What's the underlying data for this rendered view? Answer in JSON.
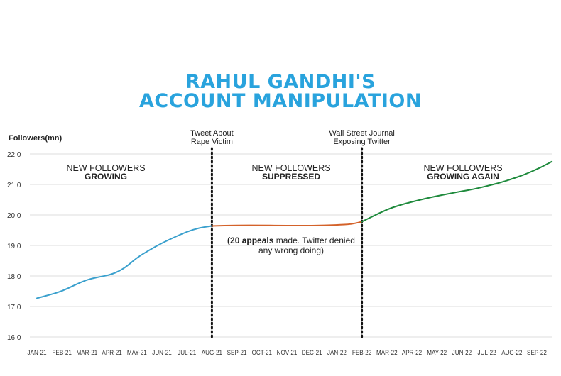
{
  "title_line1": "RAHUL GANDHI'S",
  "title_line2": "ACCOUNT MANIPULATION",
  "chart_data": {
    "type": "line",
    "ylabel": "Followers(mn)",
    "xlabel": "",
    "ylim": [
      16.0,
      22.0
    ],
    "yticks": [
      "16.0",
      "17.0",
      "18.0",
      "19.0",
      "20.0",
      "21.0",
      "22.0"
    ],
    "categories": [
      "JAN-21",
      "FEB-21",
      "MAR-21",
      "APR-21",
      "MAY-21",
      "JUN-21",
      "JUL-21",
      "AUG-21",
      "SEP-21",
      "OCT-21",
      "NOV-21",
      "DEC-21",
      "JAN-22",
      "FEB-22",
      "MAR-22",
      "APR-22",
      "MAY-22",
      "JUN-22",
      "JUL-22",
      "AUG-22",
      "SEP-22"
    ],
    "series": [
      {
        "color": "#3aa0cd",
        "points": [
          [
            0,
            17.27
          ],
          [
            0.5,
            17.38
          ],
          [
            1,
            17.5
          ],
          [
            1.5,
            17.7
          ],
          [
            2,
            17.88
          ],
          [
            2.5,
            17.97
          ],
          [
            3,
            18.05
          ],
          [
            3.5,
            18.25
          ],
          [
            4,
            18.6
          ],
          [
            4.5,
            18.85
          ],
          [
            5,
            19.08
          ],
          [
            5.5,
            19.27
          ],
          [
            6,
            19.45
          ],
          [
            6.5,
            19.58
          ],
          [
            7,
            19.64
          ]
        ]
      },
      {
        "color": "#d4622a",
        "points": [
          [
            7,
            19.64
          ],
          [
            8,
            19.66
          ],
          [
            9,
            19.66
          ],
          [
            10,
            19.65
          ],
          [
            11,
            19.65
          ],
          [
            12,
            19.67
          ],
          [
            12.6,
            19.7
          ],
          [
            13,
            19.78
          ]
        ]
      },
      {
        "color": "#1e8a3c",
        "points": [
          [
            13,
            19.78
          ],
          [
            13.5,
            19.98
          ],
          [
            14,
            20.18
          ],
          [
            14.5,
            20.32
          ],
          [
            15,
            20.43
          ],
          [
            15.5,
            20.53
          ],
          [
            16,
            20.62
          ],
          [
            16.5,
            20.7
          ],
          [
            17,
            20.78
          ],
          [
            17.5,
            20.85
          ],
          [
            18,
            20.95
          ],
          [
            18.5,
            21.05
          ],
          [
            19,
            21.18
          ],
          [
            19.5,
            21.32
          ],
          [
            20,
            21.5
          ],
          [
            20.3,
            21.62
          ],
          [
            20.6,
            21.75
          ]
        ]
      }
    ],
    "events": [
      {
        "x": 7,
        "label": "Tweet About\nRape Victim"
      },
      {
        "x": 13,
        "label": "Wall Street Journal\nExposing Twitter"
      }
    ],
    "annotations": [
      {
        "line1": "NEW FOLLOWERS",
        "line2": "GROWING"
      },
      {
        "line1": "NEW FOLLOWERS",
        "line2": "SUPPRESSED"
      },
      {
        "line1": "NEW FOLLOWERS",
        "line2": "GROWING AGAIN"
      }
    ],
    "note": {
      "bold": "(20 appeals",
      "rest": " made. Twitter denied",
      "line2": "any wrong doing)"
    }
  }
}
